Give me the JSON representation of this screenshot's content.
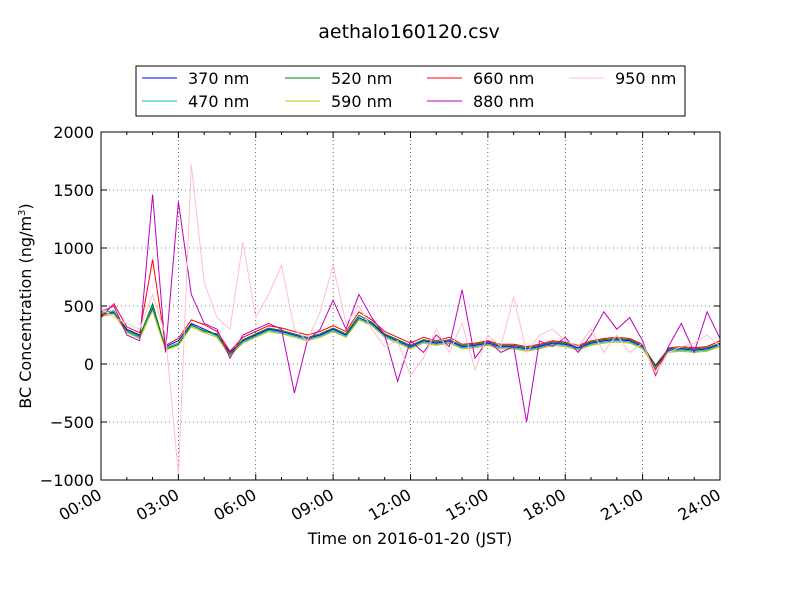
{
  "chart_data": {
    "type": "line",
    "title": "aethalo160120.csv",
    "xlabel": "Time on 2016-01-20 (JST)",
    "ylabel": "BC Concentration (ng/m",
    "ylabel_sup": "3",
    "ylabel_close": ")",
    "xlim": [
      0,
      24
    ],
    "ylim": [
      -1000,
      2000
    ],
    "x_ticks": [
      0,
      3,
      6,
      9,
      12,
      15,
      18,
      21,
      24
    ],
    "x_tick_labels": [
      "00:00",
      "03:00",
      "06:00",
      "09:00",
      "12:00",
      "15:00",
      "18:00",
      "21:00",
      "24:00"
    ],
    "y_ticks": [
      -1000,
      -500,
      0,
      500,
      1000,
      1500,
      2000
    ],
    "y_tick_labels": [
      "−1000",
      "−500",
      "0",
      "500",
      "1000",
      "1500",
      "2000"
    ],
    "grid": true,
    "legend_placement": "top",
    "x": [
      0,
      0.5,
      1,
      1.5,
      2,
      2.5,
      3,
      3.5,
      4,
      4.5,
      5,
      5.5,
      6,
      6.5,
      7,
      7.5,
      8,
      8.5,
      9,
      9.5,
      10,
      10.5,
      11,
      11.5,
      12,
      12.5,
      13,
      13.5,
      14,
      14.5,
      15,
      15.5,
      16,
      16.5,
      17,
      17.5,
      18,
      18.5,
      19,
      19.5,
      20,
      20.5,
      21,
      21.5,
      22,
      22.5,
      23,
      23.5,
      24
    ],
    "series": [
      {
        "name": "370 nm",
        "color": "#0000ff",
        "values": [
          420,
          450,
          300,
          250,
          480,
          150,
          200,
          350,
          300,
          250,
          100,
          200,
          250,
          300,
          280,
          250,
          220,
          250,
          300,
          250,
          400,
          350,
          250,
          200,
          150,
          200,
          180,
          200,
          150,
          160,
          180,
          150,
          150,
          130,
          150,
          180,
          170,
          140,
          180,
          200,
          210,
          200,
          150,
          -20,
          120,
          130,
          120,
          130,
          170
        ]
      },
      {
        "name": "470 nm",
        "color": "#00bfbf",
        "values": [
          440,
          460,
          280,
          230,
          500,
          140,
          180,
          330,
          290,
          240,
          90,
          190,
          240,
          290,
          270,
          240,
          210,
          240,
          290,
          240,
          390,
          340,
          240,
          190,
          140,
          190,
          170,
          190,
          140,
          150,
          170,
          140,
          140,
          120,
          140,
          170,
          160,
          130,
          170,
          190,
          200,
          190,
          140,
          -30,
          110,
          120,
          110,
          120,
          160
        ]
      },
      {
        "name": "520 nm",
        "color": "#008000",
        "values": [
          430,
          440,
          290,
          240,
          520,
          130,
          170,
          340,
          280,
          260,
          80,
          210,
          260,
          310,
          290,
          260,
          230,
          260,
          310,
          260,
          420,
          360,
          260,
          210,
          160,
          210,
          190,
          210,
          160,
          170,
          190,
          160,
          160,
          140,
          160,
          190,
          180,
          150,
          190,
          210,
          220,
          210,
          160,
          -10,
          130,
          140,
          130,
          140,
          180
        ]
      },
      {
        "name": "590 nm",
        "color": "#bfbf00",
        "values": [
          410,
          430,
          270,
          220,
          460,
          120,
          160,
          320,
          270,
          230,
          70,
          180,
          230,
          280,
          260,
          230,
          200,
          230,
          280,
          230,
          380,
          330,
          230,
          180,
          130,
          180,
          160,
          180,
          130,
          140,
          160,
          130,
          130,
          110,
          130,
          160,
          150,
          120,
          160,
          180,
          190,
          180,
          130,
          -40,
          100,
          110,
          100,
          110,
          150
        ]
      },
      {
        "name": "660 nm",
        "color": "#ff0000",
        "values": [
          400,
          520,
          320,
          270,
          900,
          160,
          220,
          380,
          340,
          280,
          110,
          230,
          280,
          330,
          310,
          280,
          250,
          280,
          330,
          280,
          450,
          380,
          280,
          230,
          180,
          230,
          200,
          230,
          170,
          180,
          200,
          170,
          170,
          150,
          170,
          200,
          190,
          160,
          200,
          220,
          230,
          220,
          170,
          -50,
          140,
          150,
          140,
          150,
          200
        ]
      },
      {
        "name": "880 nm",
        "color": "#bf00bf",
        "values": [
          450,
          500,
          250,
          200,
          1460,
          100,
          1400,
          600,
          350,
          300,
          50,
          250,
          300,
          350,
          300,
          -250,
          200,
          300,
          550,
          300,
          600,
          400,
          250,
          -150,
          200,
          100,
          250,
          150,
          640,
          50,
          200,
          100,
          150,
          -500,
          200,
          150,
          230,
          100,
          250,
          450,
          300,
          400,
          200,
          -100,
          150,
          350,
          100,
          450,
          220
        ]
      },
      {
        "name": "950 nm",
        "color": "#ffc0cb",
        "values": [
          480,
          400,
          350,
          300,
          600,
          250,
          -950,
          1720,
          700,
          400,
          300,
          1050,
          400,
          600,
          850,
          300,
          200,
          450,
          850,
          350,
          500,
          300,
          150,
          200,
          -100,
          50,
          300,
          100,
          350,
          -50,
          250,
          150,
          580,
          100,
          250,
          300,
          200,
          150,
          300,
          100,
          250,
          100,
          180,
          -80,
          100,
          150,
          180,
          250,
          150
        ]
      }
    ]
  }
}
